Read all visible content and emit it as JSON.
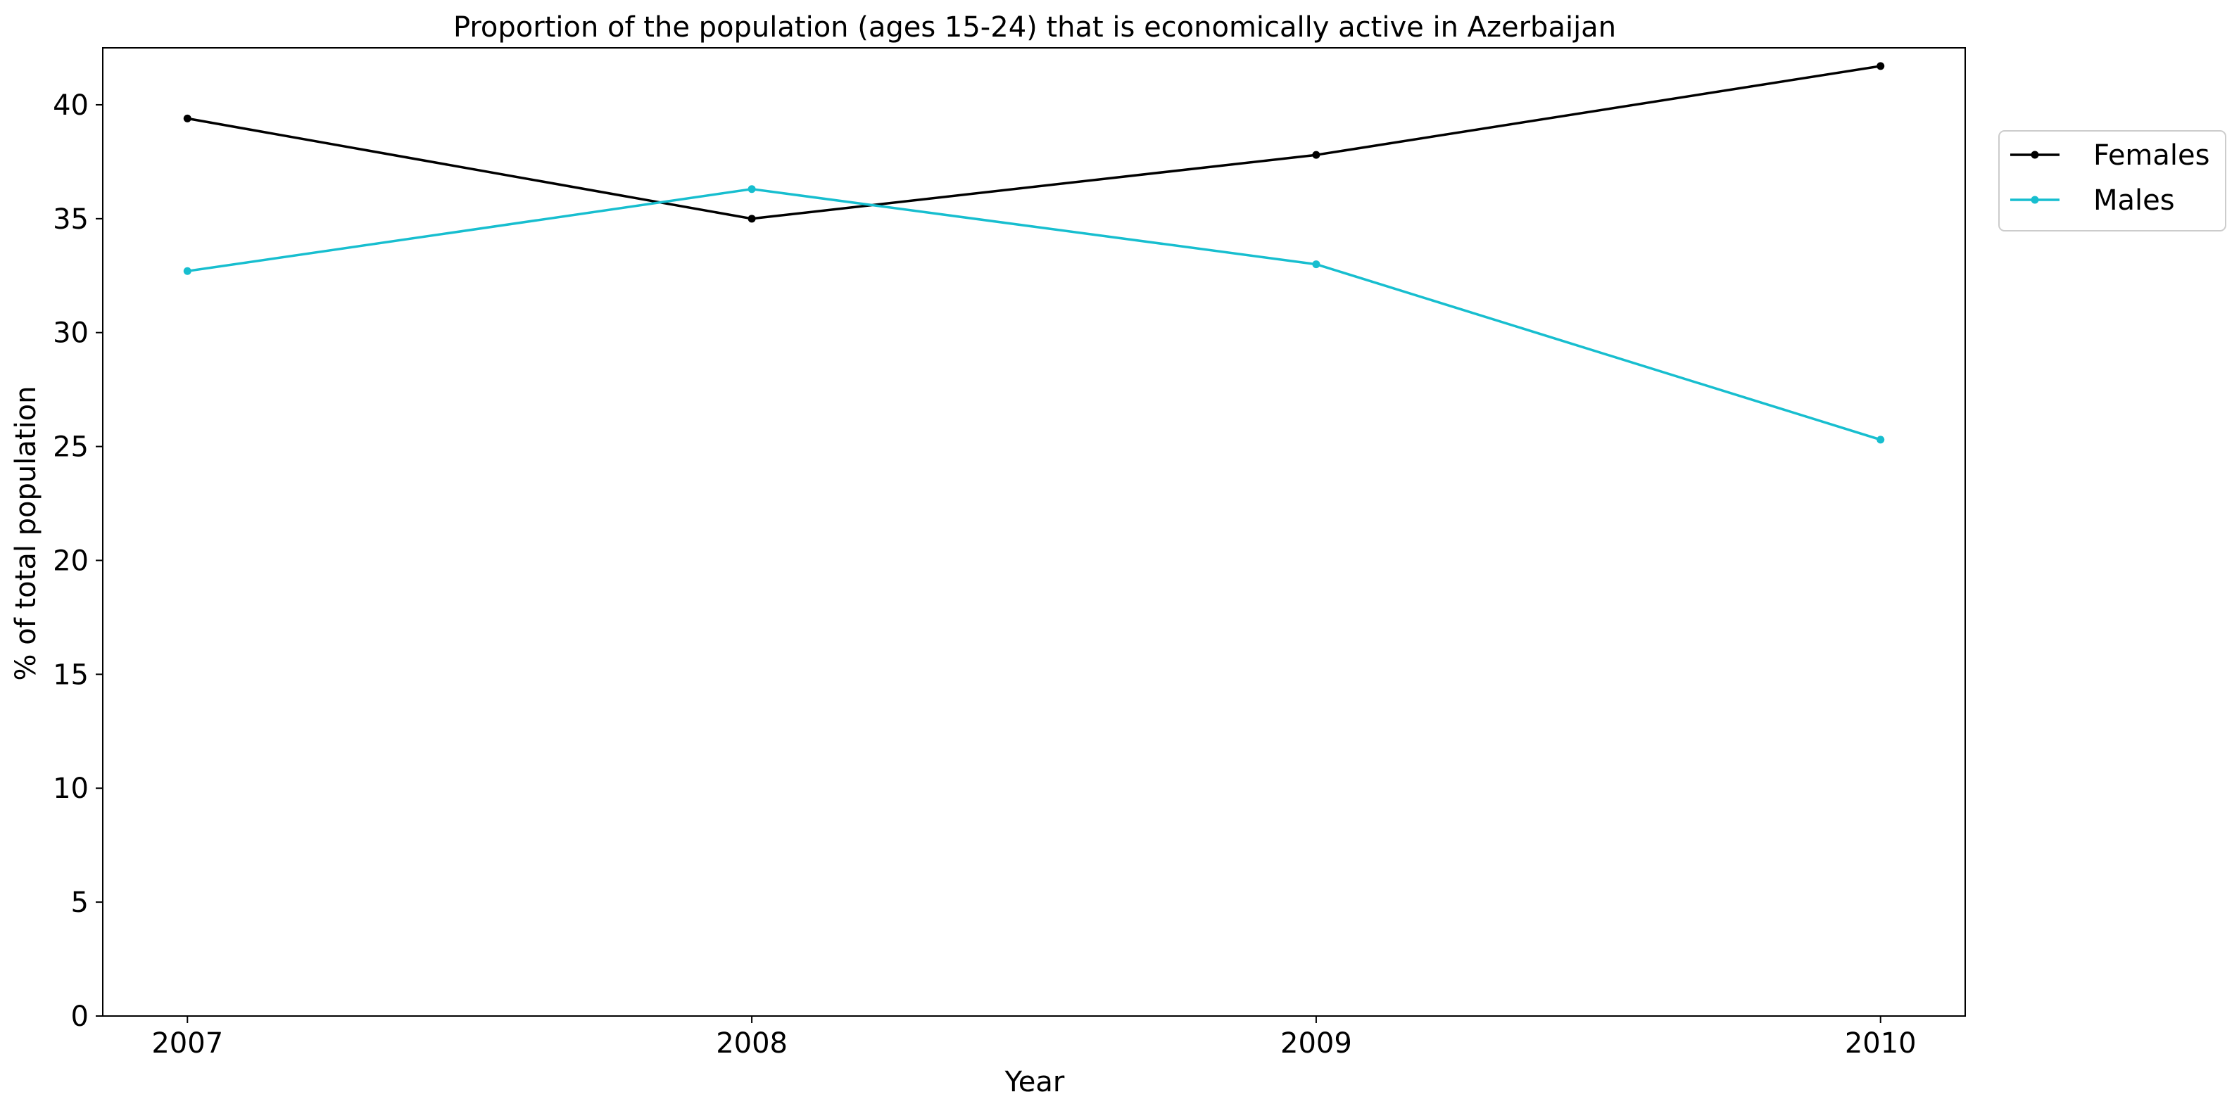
{
  "chart_data": {
    "type": "line",
    "title": "Proportion of the population (ages 15-24) that is economically active in Azerbaijan",
    "xlabel": "Year",
    "ylabel": "% of total population",
    "x": [
      2007,
      2008,
      2009,
      2010
    ],
    "x_tick_labels": [
      "2007",
      "2008",
      "2009",
      "2010"
    ],
    "ylim": [
      0,
      42.5
    ],
    "y_ticks": [
      0,
      5,
      10,
      15,
      20,
      25,
      30,
      35,
      40
    ],
    "y_tick_labels": [
      "0",
      "5",
      "10",
      "15",
      "20",
      "25",
      "30",
      "35",
      "40"
    ],
    "grid": false,
    "legend_position": "top-right, outside plot",
    "series": [
      {
        "name": "Females",
        "color": "#000000",
        "values": [
          39.4,
          35.0,
          37.8,
          41.7
        ]
      },
      {
        "name": "Males",
        "color": "#17becf",
        "values": [
          32.7,
          36.3,
          33.0,
          25.3
        ]
      }
    ]
  }
}
